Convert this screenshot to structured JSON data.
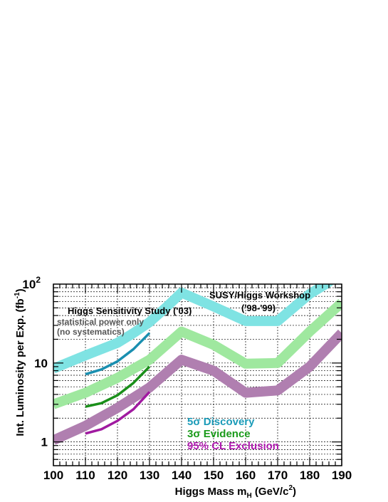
{
  "chart_data": {
    "type": "line",
    "title": "",
    "xlabel": "Higgs Mass m",
    "xlabel_sub": "H",
    "xlabel_units": " (GeV/c",
    "xlabel_units_sup": "2",
    "xlabel_units_end": ")",
    "ylabel": "Int. Luminosity per Exp. (fb",
    "ylabel_sup": "-1",
    "ylabel_end": ")",
    "xlim": [
      100,
      190
    ],
    "ylim": [
      0.5,
      100
    ],
    "yscale": "log",
    "grid": true,
    "x_ticks": [
      "100",
      "110",
      "120",
      "130",
      "140",
      "150",
      "160",
      "170",
      "180",
      "190"
    ],
    "y_ticks": [
      {
        "value": 1,
        "label": "1"
      },
      {
        "value": 10,
        "label": "10"
      },
      {
        "value": 100,
        "label": "10",
        "sup": "2"
      }
    ],
    "annotations": {
      "workshop_title": "SUSY/Higgs Workshop",
      "workshop_years": "('98-'99)",
      "study_title": "Higgs Sensitivity Study ('03)",
      "study_note1": "statistical power only",
      "study_note2": "(no systematics)"
    },
    "legend": [
      {
        "label": "5σ Discovery",
        "color": "#1a9bb8"
      },
      {
        "label": "3σ Evidence",
        "color": "#1a9a1a"
      },
      {
        "label": "95% CL Exclusion",
        "color": "#b01ab0"
      }
    ],
    "series": [
      {
        "group": "workshop",
        "kind": "discovery",
        "color": "#7fe3e3",
        "width": 14,
        "x": [
          100,
          110,
          120,
          125,
          130,
          135,
          140,
          150,
          160,
          170,
          180,
          185,
          190
        ],
        "y": [
          8.5,
          12.5,
          18,
          24,
          33,
          50,
          78,
          52,
          34,
          34,
          75,
          100,
          140
        ]
      },
      {
        "group": "workshop",
        "kind": "evidence",
        "color": "#9fe89f",
        "width": 14,
        "x": [
          100,
          110,
          120,
          130,
          140,
          150,
          160,
          170,
          180,
          190
        ],
        "y": [
          3.0,
          4.2,
          6.5,
          11,
          25,
          17,
          9.8,
          10,
          25,
          58
        ]
      },
      {
        "group": "workshop",
        "kind": "exclusion",
        "color": "#b07fb0",
        "width": 14,
        "x": [
          100,
          110,
          120,
          130,
          140,
          150,
          160,
          170,
          180,
          190
        ],
        "y": [
          1.05,
          1.6,
          2.7,
          4.9,
          11,
          8.0,
          4.2,
          4.5,
          9.0,
          24
        ]
      },
      {
        "group": "study",
        "kind": "discovery",
        "color": "#1a8fb0",
        "width": 3.5,
        "x": [
          110,
          115,
          120,
          125,
          130
        ],
        "y": [
          7.2,
          8.3,
          10.5,
          15,
          24
        ]
      },
      {
        "group": "study",
        "kind": "evidence",
        "color": "#1a8f1a",
        "width": 3.5,
        "x": [
          110,
          115,
          120,
          125,
          130
        ],
        "y": [
          2.8,
          3.1,
          3.9,
          5.6,
          9.0
        ]
      },
      {
        "group": "study",
        "kind": "exclusion",
        "color": "#a01aa0",
        "width": 3.5,
        "x": [
          110,
          115,
          120,
          125,
          130
        ],
        "y": [
          1.28,
          1.45,
          1.85,
          2.6,
          4.3
        ]
      }
    ]
  }
}
